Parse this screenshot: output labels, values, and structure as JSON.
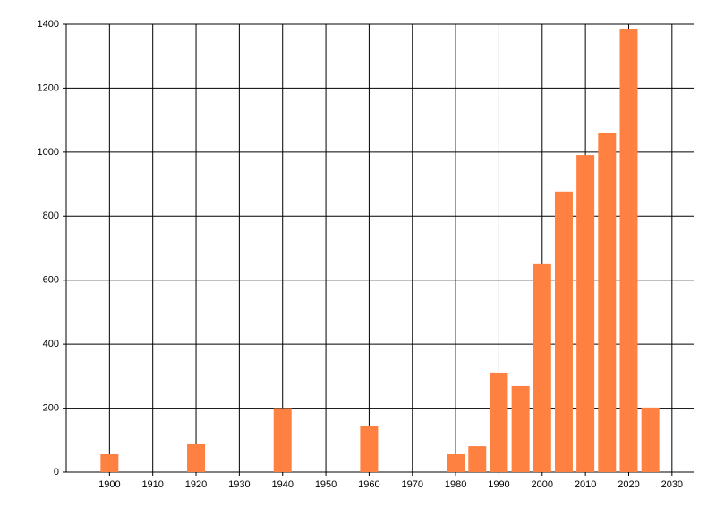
{
  "chart_data": {
    "type": "bar",
    "x": [
      1900,
      1920,
      1940,
      1960,
      1980,
      1985,
      1990,
      1995,
      2000,
      2005,
      2010,
      2015,
      2020,
      2025
    ],
    "values": [
      56,
      87,
      200,
      143,
      56,
      81,
      311,
      269,
      650,
      877,
      991,
      1061,
      1386,
      202
    ],
    "color": "#ff8142",
    "xlim": [
      1890,
      2035
    ],
    "xticks": [
      1900,
      1910,
      1920,
      1930,
      1940,
      1950,
      1960,
      1970,
      1980,
      1990,
      2000,
      2010,
      2020,
      2030
    ],
    "ylim": [
      0,
      1400
    ],
    "yticks": [
      0,
      200,
      400,
      600,
      800,
      1000,
      1200,
      1400
    ],
    "grid": true
  }
}
